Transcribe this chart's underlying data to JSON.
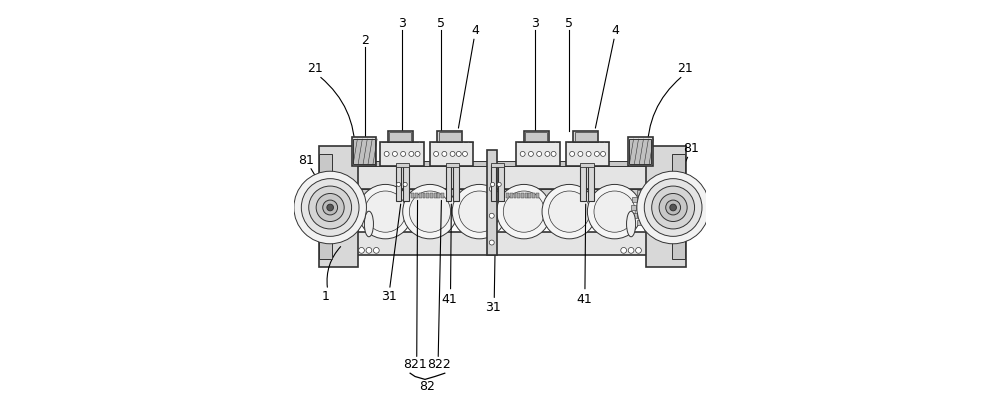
{
  "bg_color": "#ffffff",
  "line_color": "#333333",
  "figsize": [
    10.0,
    4.15
  ],
  "dpi": 100
}
